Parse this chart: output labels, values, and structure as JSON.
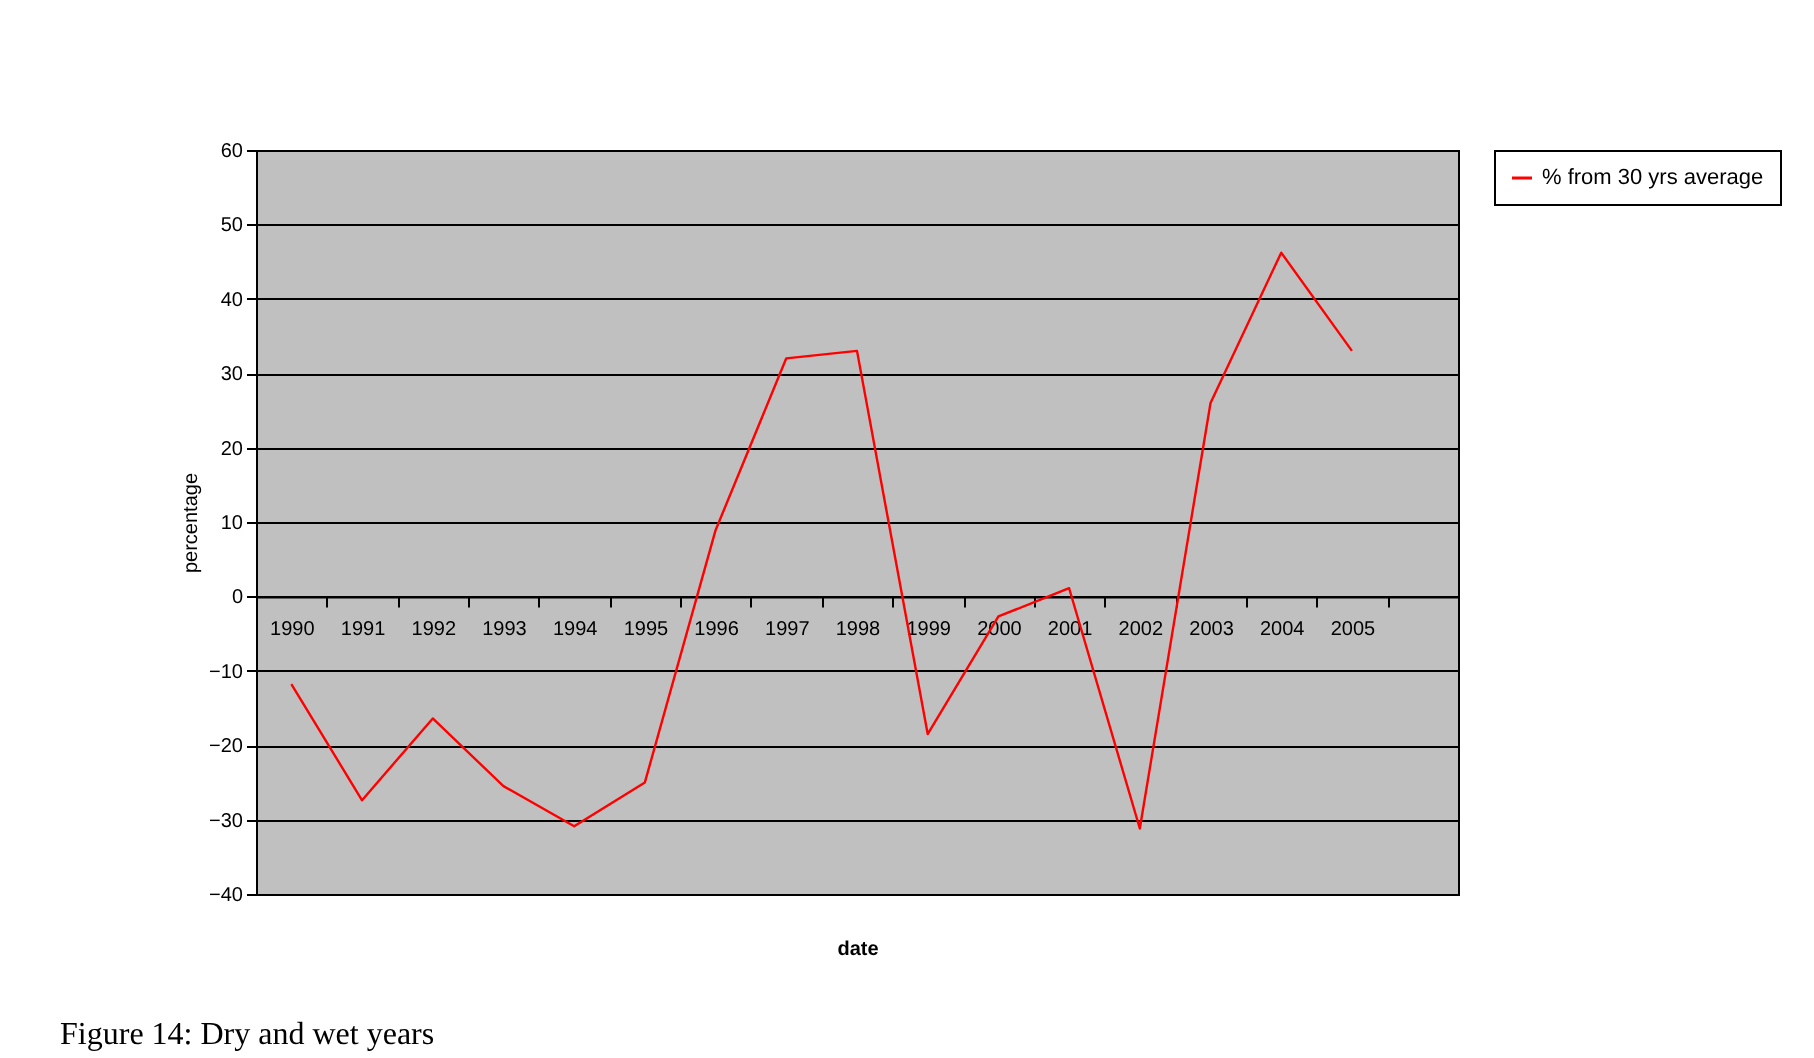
{
  "chart_data": {
    "type": "line",
    "xlabel": "date",
    "ylabel": "percentage",
    "categories": [
      "1990",
      "1991",
      "1992",
      "1993",
      "1994",
      "1995",
      "1996",
      "1997",
      "1998",
      "1999",
      "2000",
      "2001",
      "2002",
      "2003",
      "2004",
      "2005",
      null
    ],
    "series": [
      {
        "name": "% from 30 yrs average",
        "color": "#ff0000",
        "values": [
          -11.8,
          -27.4,
          -16.4,
          -25.5,
          -30.9,
          -25,
          8.9,
          32,
          33,
          -18.5,
          -2.7,
          1.1,
          -31.2,
          26,
          46.2,
          33,
          null
        ]
      }
    ],
    "ylim": [
      -40,
      60
    ],
    "yticks": [
      -40,
      -30,
      -20,
      -10,
      0,
      10,
      20,
      30,
      40,
      50,
      60
    ],
    "grid": "y",
    "legend": "right",
    "marker": "none",
    "line_style": "solid",
    "annotations": [
      "Figure 14: Dry and wet years"
    ]
  }
}
